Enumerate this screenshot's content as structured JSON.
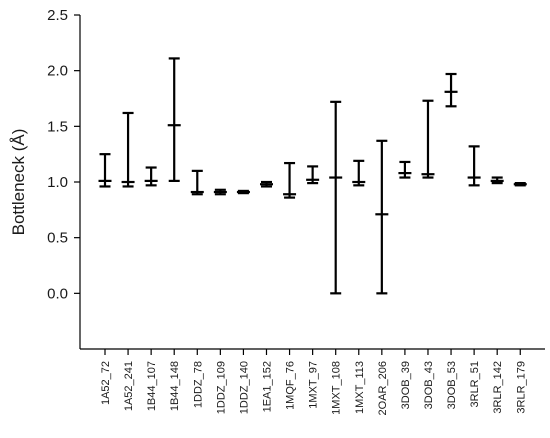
{
  "chart_data": {
    "type": "errorbar",
    "title": "",
    "xlabel": "",
    "ylabel": "Bottleneck (Å)",
    "ylim": [
      -0.5,
      2.5
    ],
    "yticks": [
      "0.0",
      "0.5",
      "1.0",
      "1.5",
      "2.0",
      "2.5"
    ],
    "grid": false,
    "legend": "none",
    "color": "#000000",
    "categories": [
      "1A52_72",
      "1A52_241",
      "1B44_107",
      "1B44_148",
      "1DDZ_78",
      "1DDZ_109",
      "1DDZ_140",
      "1EA1_152",
      "1MQF_76",
      "1MXT_97",
      "1MXT_108",
      "1MXT_113",
      "2OAR_206",
      "3DOB_39",
      "3DOB_43",
      "3DOB_53",
      "3RLR_51",
      "3RLR_142",
      "3RLR_179"
    ],
    "series": [
      {
        "mean": [
          1.01,
          1.0,
          1.01,
          1.51,
          0.91,
          0.91,
          0.91,
          0.98,
          0.89,
          1.02,
          1.04,
          1.0,
          0.71,
          1.08,
          1.07,
          1.81,
          1.04,
          1.01,
          0.98
        ],
        "lower": [
          0.96,
          0.96,
          0.97,
          1.01,
          0.89,
          0.89,
          0.9,
          0.96,
          0.86,
          0.99,
          0.0,
          0.97,
          0.0,
          1.04,
          1.04,
          1.68,
          0.97,
          0.99,
          0.97
        ],
        "upper": [
          1.25,
          1.62,
          1.13,
          2.11,
          1.1,
          0.93,
          0.92,
          1.0,
          1.17,
          1.14,
          1.72,
          1.19,
          1.37,
          1.18,
          1.73,
          1.97,
          1.32,
          1.04,
          0.99
        ]
      }
    ]
  }
}
